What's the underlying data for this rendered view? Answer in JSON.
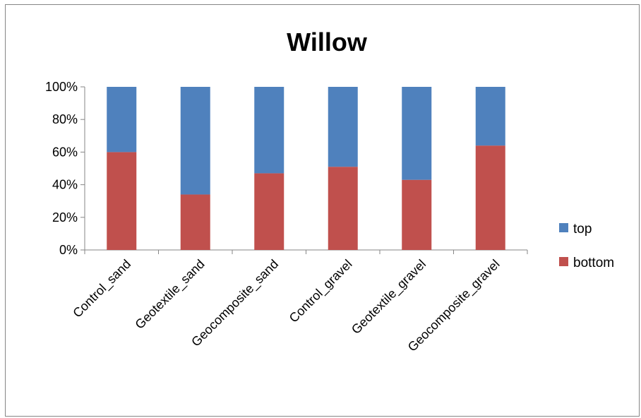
{
  "chart_data": {
    "type": "bar",
    "stacked": "percent",
    "title": "Willow",
    "categories": [
      "Control_sand",
      "Geotextile_sand",
      "Geocomposite_sand",
      "Control_gravel",
      "Geotextile_gravel",
      "Geocomposite_gravel"
    ],
    "series": [
      {
        "name": "bottom",
        "color": "#c0504d",
        "values": [
          60,
          34,
          47,
          51,
          43,
          64
        ]
      },
      {
        "name": "top",
        "color": "#4f81bd",
        "values": [
          40,
          66,
          53,
          49,
          57,
          36
        ]
      }
    ],
    "yticks": [
      "0%",
      "20%",
      "40%",
      "60%",
      "80%",
      "100%"
    ],
    "ylim": [
      0,
      100
    ],
    "grid": false,
    "legend": {
      "placement": "right",
      "entries": [
        "top",
        "bottom"
      ]
    }
  }
}
